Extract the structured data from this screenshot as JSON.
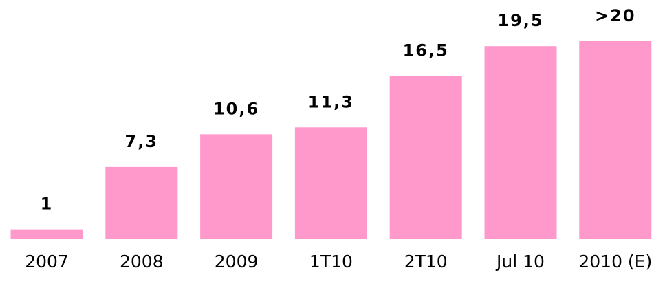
{
  "chart_data": {
    "type": "bar",
    "categories": [
      "2007",
      "2008",
      "2009",
      "1T10",
      "2T10",
      "Jul 10",
      "2010 (E)"
    ],
    "values": [
      1,
      7.3,
      10.6,
      11.3,
      16.5,
      19.5,
      20
    ],
    "value_labels": [
      "1",
      "7,3",
      "10,6",
      "11,3",
      "16,5",
      "19,5",
      ">20"
    ],
    "color": "#ff99cc"
  }
}
